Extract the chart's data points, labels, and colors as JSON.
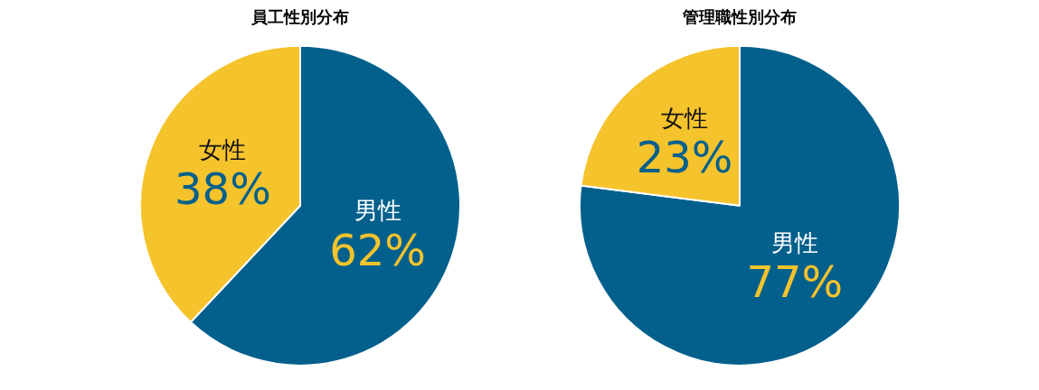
{
  "chart_data": [
    {
      "type": "pie",
      "title": "員工性別分布",
      "categories": [
        "男性",
        "女性"
      ],
      "values": [
        62,
        38
      ],
      "colors": [
        "#03608c",
        "#f5c32c"
      ],
      "value_labels": [
        "62%",
        "38%"
      ]
    },
    {
      "type": "pie",
      "title": "管理職性別分布",
      "categories": [
        "男性",
        "女性"
      ],
      "values": [
        77,
        23
      ],
      "colors": [
        "#03608c",
        "#f5c32c"
      ],
      "value_labels": [
        "77%",
        "23%"
      ]
    }
  ]
}
